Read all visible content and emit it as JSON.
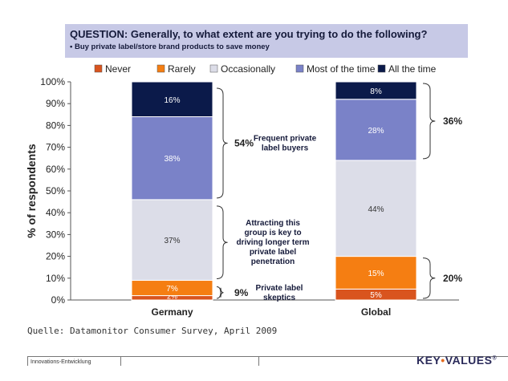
{
  "question": {
    "title": "QUESTION: Generally, to what extent are you trying to do the following?",
    "subtitle": "• Buy private label/store brand products to save money"
  },
  "legend": [
    {
      "label": "Never",
      "color": "#d9541e"
    },
    {
      "label": "Rarely",
      "color": "#f57e12"
    },
    {
      "label": "Occasionally",
      "color": "#dcdde8"
    },
    {
      "label": "Most of the time",
      "color": "#7a82c8"
    },
    {
      "label": "All the time",
      "color": "#0b1a4a"
    }
  ],
  "chart_data": {
    "type": "bar",
    "stacked": true,
    "categories": [
      "Germany",
      "Global"
    ],
    "series": [
      {
        "name": "Never",
        "values": [
          2,
          5
        ],
        "labels": [
          "2%",
          "5%"
        ]
      },
      {
        "name": "Rarely",
        "values": [
          7,
          15
        ],
        "labels": [
          "7%",
          "15%"
        ]
      },
      {
        "name": "Occasionally",
        "values": [
          37,
          44
        ],
        "labels": [
          "37%",
          "44%"
        ]
      },
      {
        "name": "Most of the time",
        "values": [
          38,
          28
        ],
        "labels": [
          "38%",
          "28%"
        ]
      },
      {
        "name": "All the time",
        "values": [
          16,
          8
        ],
        "labels": [
          "16%",
          "8%"
        ]
      }
    ],
    "ylabel": "% of respondents",
    "ylim": [
      0,
      100
    ],
    "yticks": [
      "0%",
      "10%",
      "20%",
      "30%",
      "40%",
      "50%",
      "60%",
      "70%",
      "80%",
      "90%",
      "100%"
    ],
    "annotations": {
      "germany": [
        {
          "pct": "54%",
          "text": "Frequent private label buyers",
          "lines": [
            "Frequent private",
            "label buyers"
          ],
          "range": [
            46,
            100
          ]
        },
        {
          "pct": "",
          "text": "Attracting this group is key to driving longer term private label penetration",
          "lines": [
            "Attracting this",
            "group is key to",
            "driving longer term",
            "private label",
            "penetration"
          ],
          "range": [
            9,
            46
          ]
        },
        {
          "pct": "9%",
          "text": "Private label skeptics",
          "lines": [
            "Private label",
            "skeptics"
          ],
          "range": [
            0,
            9
          ]
        }
      ],
      "global": [
        {
          "pct": "36%",
          "range": [
            64,
            100
          ]
        },
        {
          "pct": "20%",
          "range": [
            0,
            20
          ]
        }
      ]
    }
  },
  "source": "Quelle: Datamonitor Consumer Survey, April 2009",
  "footer": {
    "left": "Innovations-Entwicklung",
    "brand_a": "KEY",
    "brand_sep": "•",
    "brand_b": "VALUES",
    "brand_mark": "®"
  }
}
